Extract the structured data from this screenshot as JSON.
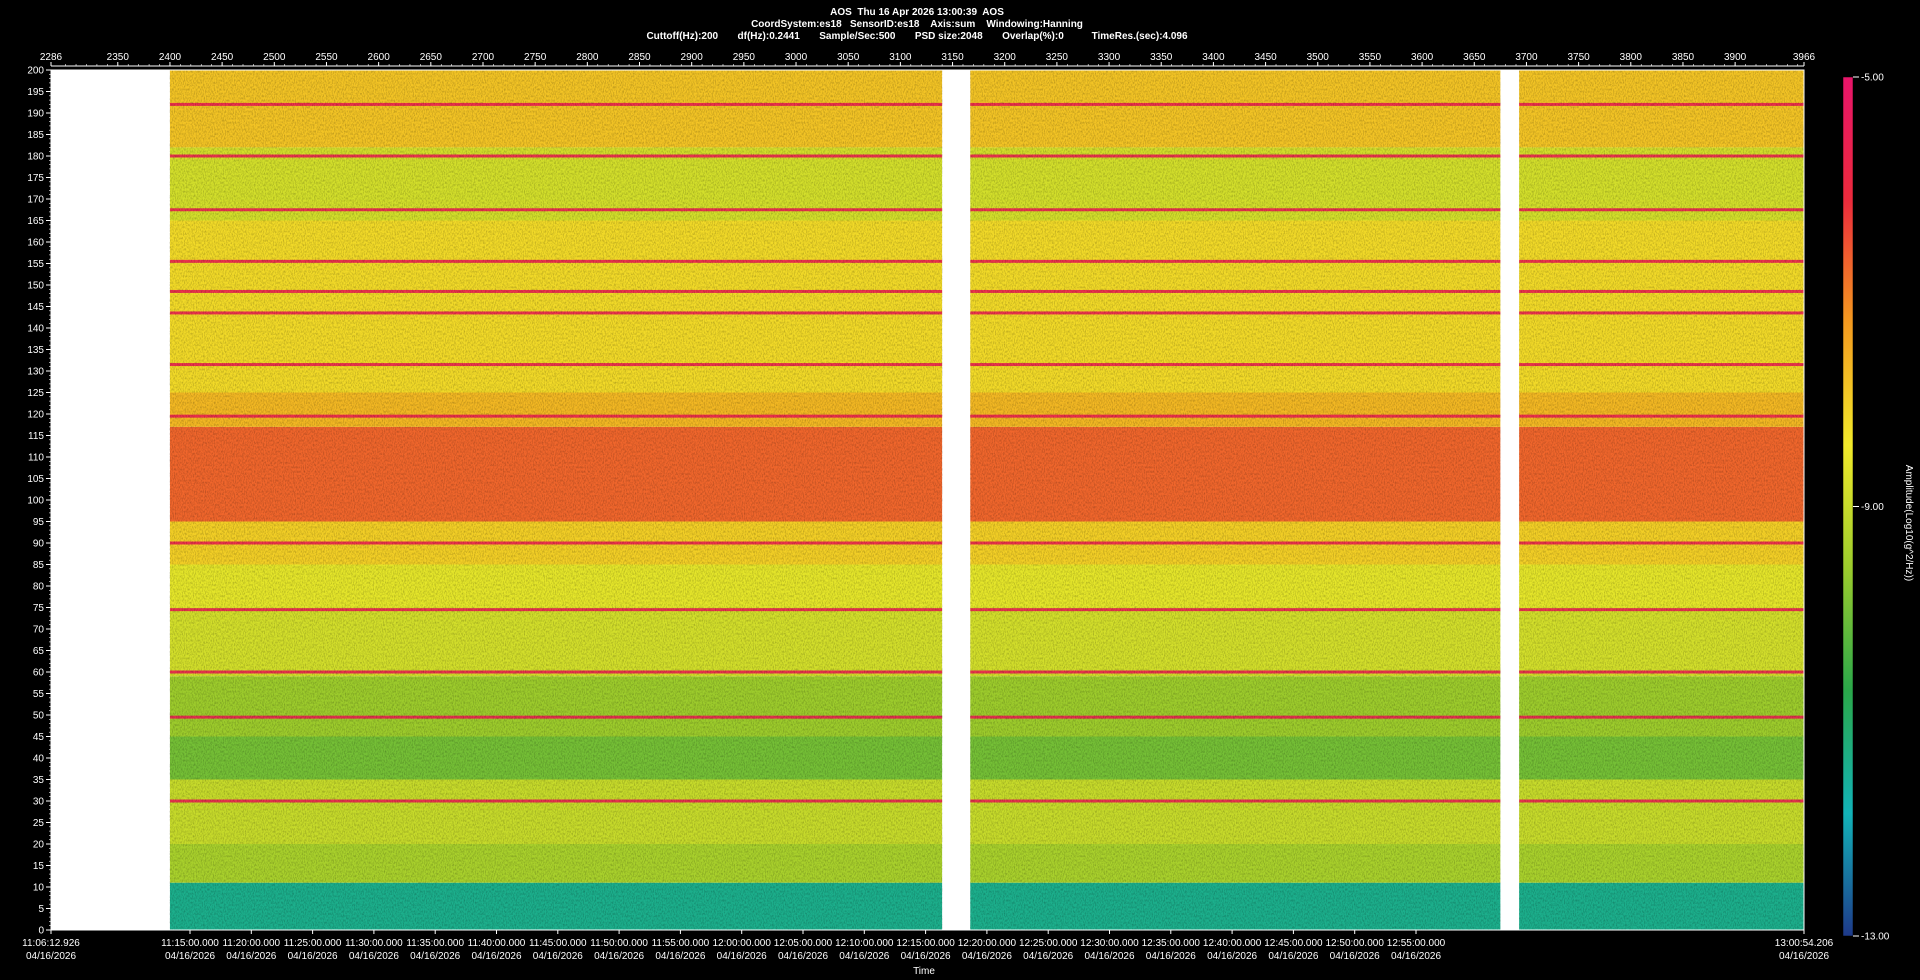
{
  "header": {
    "line1": "AOS  Thu 16 Apr 2026 13:00:39  AOS",
    "line2": "CoordSystem:es18   SensorID:es18    Axis:sum    Windowing:Hanning",
    "line3": "Cuttoff(Hz):200       df(Hz):0.2441       Sample/Sec:500       PSD size:2048       Overlap(%):0          TimeRes.(sec):4.096"
  },
  "colors": {
    "background": "#000000",
    "gap": "#ffffff",
    "colormap": [
      "#1e3a8a",
      "#12b3b8",
      "#2aa84a",
      "#9ccc2c",
      "#f2ea2a",
      "#f49a1f",
      "#ec2a3c",
      "#e8156a"
    ]
  },
  "chart_data": {
    "type": "heatmap",
    "title": "AOS  Thu 16 Apr 2026 13:00:39  AOS",
    "xlabel": "Time",
    "ylabel": "",
    "ylim": [
      0,
      200
    ],
    "top_axis_range": [
      2286,
      3966
    ],
    "top_axis_ticks": [
      "2286",
      "2350",
      "2400",
      "2450",
      "2500",
      "2550",
      "2600",
      "2650",
      "2700",
      "2750",
      "2800",
      "2850",
      "2900",
      "2950",
      "3000",
      "3050",
      "3100",
      "3150",
      "3200",
      "3250",
      "3300",
      "3350",
      "3400",
      "3450",
      "3500",
      "3550",
      "3600",
      "3650",
      "3700",
      "3750",
      "3800",
      "3850",
      "3900",
      "3966"
    ],
    "y_ticks": [
      "0",
      "5",
      "10",
      "15",
      "20",
      "25",
      "30",
      "35",
      "40",
      "45",
      "50",
      "55",
      "60",
      "65",
      "70",
      "75",
      "80",
      "85",
      "90",
      "95",
      "100",
      "105",
      "110",
      "115",
      "120",
      "125",
      "130",
      "135",
      "140",
      "145",
      "150",
      "155",
      "160",
      "165",
      "170",
      "175",
      "180",
      "185",
      "190",
      "195",
      "200"
    ],
    "time_ticks": [
      {
        "time": "11:06:12.926",
        "date": "04/16/2026"
      },
      {
        "time": "11:15:00.000",
        "date": "04/16/2026"
      },
      {
        "time": "11:20:00.000",
        "date": "04/16/2026"
      },
      {
        "time": "11:25:00.000",
        "date": "04/16/2026"
      },
      {
        "time": "11:30:00.000",
        "date": "04/16/2026"
      },
      {
        "time": "11:35:00.000",
        "date": "04/16/2026"
      },
      {
        "time": "11:40:00.000",
        "date": "04/16/2026"
      },
      {
        "time": "11:45:00.000",
        "date": "04/16/2026"
      },
      {
        "time": "11:50:00.000",
        "date": "04/16/2026"
      },
      {
        "time": "11:55:00.000",
        "date": "04/16/2026"
      },
      {
        "time": "12:00:00.000",
        "date": "04/16/2026"
      },
      {
        "time": "12:05:00.000",
        "date": "04/16/2026"
      },
      {
        "time": "12:10:00.000",
        "date": "04/16/2026"
      },
      {
        "time": "12:15:00.000",
        "date": "04/16/2026"
      },
      {
        "time": "12:20:00.000",
        "date": "04/16/2026"
      },
      {
        "time": "12:25:00.000",
        "date": "04/16/2026"
      },
      {
        "time": "12:30:00.000",
        "date": "04/16/2026"
      },
      {
        "time": "12:35:00.000",
        "date": "04/16/2026"
      },
      {
        "time": "12:40:00.000",
        "date": "04/16/2026"
      },
      {
        "time": "12:45:00.000",
        "date": "04/16/2026"
      },
      {
        "time": "12:50:00.000",
        "date": "04/16/2026"
      },
      {
        "time": "12:55:00.000",
        "date": "04/16/2026"
      },
      {
        "time": "13:00:54.206",
        "date": "04/16/2026"
      }
    ],
    "data_segments": [
      [
        2400,
        3140
      ],
      [
        3167,
        3675
      ],
      [
        3693,
        3966
      ]
    ],
    "colorbar": {
      "label": "Amplitude(Log10(g^2/Hz))",
      "range": [
        -13.0,
        -5.0
      ],
      "ticks": [
        "-5.00",
        "-9.00",
        "-13.00"
      ]
    },
    "band_levels": [
      {
        "f": [
          0,
          11
        ],
        "level": 0.2
      },
      {
        "f": [
          11,
          20
        ],
        "level": 0.45
      },
      {
        "f": [
          20,
          35
        ],
        "level": 0.5
      },
      {
        "f": [
          35,
          45
        ],
        "level": 0.38
      },
      {
        "f": [
          45,
          59
        ],
        "level": 0.43
      },
      {
        "f": [
          59,
          75
        ],
        "level": 0.52
      },
      {
        "f": [
          75,
          85
        ],
        "level": 0.55
      },
      {
        "f": [
          85,
          95
        ],
        "level": 0.62
      },
      {
        "f": [
          95,
          117
        ],
        "level": 0.78
      },
      {
        "f": [
          117,
          125
        ],
        "level": 0.66
      },
      {
        "f": [
          125,
          165
        ],
        "level": 0.6
      },
      {
        "f": [
          165,
          182
        ],
        "level": 0.52
      },
      {
        "f": [
          182,
          200
        ],
        "level": 0.64
      }
    ],
    "tonal_lines_hz": [
      30,
      49.5,
      60,
      74.5,
      90,
      119.5,
      131.5,
      143.5,
      148.5,
      155.5,
      167.5,
      180,
      192
    ]
  }
}
